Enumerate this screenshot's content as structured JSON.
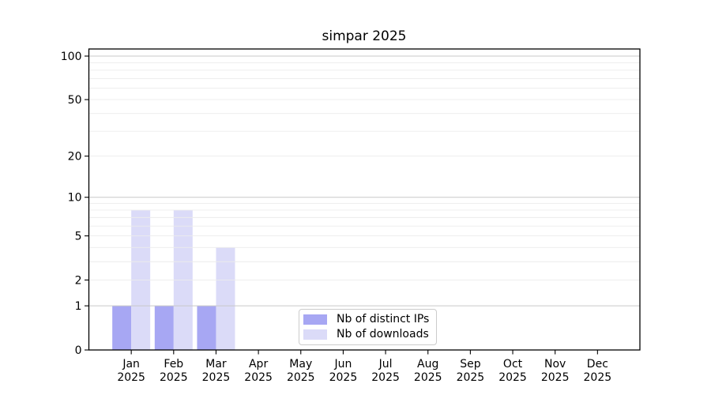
{
  "chart_data": {
    "type": "bar",
    "title": "simpar 2025",
    "categories": [
      "Jan",
      "Feb",
      "Mar",
      "Apr",
      "May",
      "Jun",
      "Jul",
      "Aug",
      "Sep",
      "Oct",
      "Nov",
      "Dec"
    ],
    "year": "2025",
    "series": [
      {
        "name": "Nb of distinct IPs",
        "color": "#a7a7f3",
        "values": [
          1,
          1,
          1,
          0,
          0,
          0,
          0,
          0,
          0,
          0,
          0,
          0
        ]
      },
      {
        "name": "Nb of downloads",
        "color": "#dbdbf8",
        "values": [
          8,
          8,
          4,
          0,
          0,
          0,
          0,
          0,
          0,
          0,
          0,
          0
        ]
      }
    ],
    "xlabel": "",
    "ylabel": "",
    "yscale": "log10(1+x)",
    "yticks": [
      0,
      1,
      2,
      5,
      10,
      20,
      50,
      100
    ],
    "ylim": [
      0,
      112
    ],
    "grid": {
      "on": true,
      "major_values": [
        1,
        10,
        100
      ],
      "minor_values": [
        2,
        3,
        4,
        5,
        6,
        7,
        8,
        9,
        20,
        30,
        40,
        50,
        60,
        70,
        80,
        90
      ],
      "major_color": "#c9c9c9",
      "minor_color": "#ececec"
    },
    "legend_position": "bottom-center",
    "axis_color": "#000000",
    "background_color": "#ffffff"
  }
}
